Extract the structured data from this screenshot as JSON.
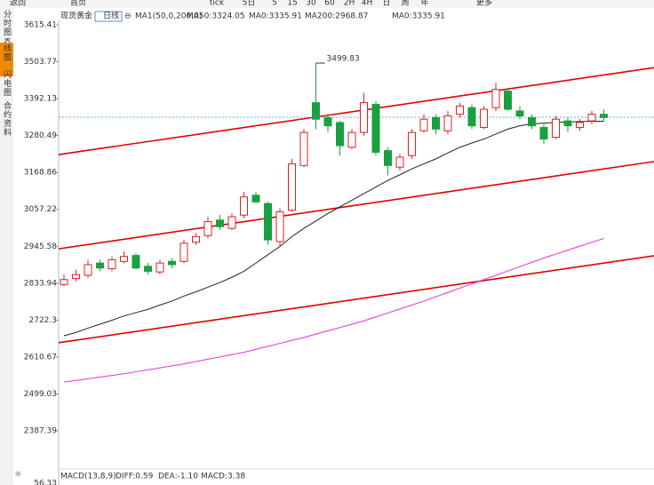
{
  "toolbar": [
    "返回",
    "首页",
    "tick",
    "5日",
    "5",
    "15",
    "30",
    "60",
    "2H",
    "4H",
    "日",
    "周",
    "年",
    "更多"
  ],
  "sidebar": [
    "分时图",
    "K线图",
    "闪电图",
    "合约资料"
  ],
  "chart_data": {
    "type": "candlestick",
    "title": "现货黄金",
    "period": "日线",
    "indicator": "MA1(50,0,200,0)",
    "legend": [
      {
        "label": "MA50:3324.05",
        "color": "#222222"
      },
      {
        "label": "MA0:3335.91",
        "color": "#1a5fd0"
      },
      {
        "label": "MA200:2968.87",
        "color": "#e030e0"
      },
      {
        "label": "MA0:3335.91",
        "color": "#f08a00"
      }
    ],
    "up_color": "#e02020",
    "down_color": "#1aa040",
    "open": [
      2830,
      2848,
      2858,
      2895,
      2878,
      2900,
      2918,
      2885,
      2868,
      2900,
      2900,
      2958,
      2978,
      3025,
      3000,
      3040,
      3100,
      3075,
      2960,
      3055,
      3190,
      3380,
      3335,
      3320,
      3245,
      3290,
      3375,
      3235,
      3185,
      3220,
      3295,
      3335,
      3295,
      3345,
      3365,
      3305,
      3365,
      3415,
      3355,
      3335,
      3305,
      3275,
      3325,
      3305,
      3325,
      3345
    ],
    "high": [
      2860,
      2875,
      2905,
      2905,
      2915,
      2930,
      2925,
      2895,
      2905,
      2910,
      2965,
      2985,
      3035,
      3040,
      3045,
      3110,
      3110,
      3080,
      3060,
      3210,
      3300,
      3499.83,
      3345,
      3325,
      3300,
      3410,
      3385,
      3245,
      3225,
      3300,
      3345,
      3345,
      3355,
      3380,
      3375,
      3370,
      3440,
      3425,
      3370,
      3345,
      3315,
      3340,
      3335,
      3330,
      3355,
      3360
    ],
    "low": [
      2825,
      2840,
      2850,
      2870,
      2870,
      2895,
      2875,
      2860,
      2860,
      2880,
      2895,
      2950,
      2970,
      2995,
      2995,
      3030,
      3075,
      2950,
      2945,
      3050,
      3185,
      3300,
      3290,
      3220,
      3240,
      3280,
      3220,
      3160,
      3175,
      3210,
      3290,
      3285,
      3285,
      3335,
      3300,
      3300,
      3355,
      3355,
      3330,
      3300,
      3255,
      3270,
      3290,
      3295,
      3315,
      3325
    ],
    "close": [
      2845,
      2860,
      2890,
      2880,
      2905,
      2915,
      2880,
      2870,
      2895,
      2890,
      2955,
      2975,
      3020,
      3005,
      3035,
      3095,
      3080,
      2965,
      3050,
      3195,
      3290,
      3330,
      3310,
      3250,
      3290,
      3380,
      3230,
      3190,
      3215,
      3290,
      3330,
      3300,
      3340,
      3370,
      3310,
      3360,
      3420,
      3360,
      3340,
      3310,
      3270,
      3330,
      3310,
      3320,
      3345,
      3335
    ],
    "series": [
      {
        "color": "#222222",
        "values": [
          2675,
          2685,
          2698,
          2710,
          2722,
          2735,
          2745,
          2755,
          2768,
          2780,
          2795,
          2808,
          2822,
          2836,
          2852,
          2870,
          2895,
          2920,
          2945,
          2975,
          3000,
          3022,
          3045,
          3065,
          3085,
          3105,
          3125,
          3145,
          3162,
          3180,
          3195,
          3210,
          3228,
          3245,
          3258,
          3270,
          3285,
          3300,
          3310,
          3316,
          3318,
          3320,
          3322,
          3323,
          3324,
          3324
        ]
      },
      {
        "color": "#e030e0",
        "values": [
          2535,
          2540,
          2545,
          2550,
          2555,
          2560,
          2566,
          2572,
          2578,
          2584,
          2590,
          2597,
          2604,
          2611,
          2618,
          2625,
          2634,
          2643,
          2652,
          2661,
          2670,
          2680,
          2690,
          2700,
          2710,
          2720,
          2732,
          2744,
          2756,
          2768,
          2780,
          2793,
          2806,
          2819,
          2832,
          2845,
          2858,
          2871,
          2884,
          2897,
          2910,
          2922,
          2934,
          2946,
          2958,
          2969
        ]
      }
    ],
    "trendlines": [
      {
        "color": "#e00000",
        "values": [
          3223,
          3486
        ]
      },
      {
        "color": "#e00000",
        "values": [
          2938,
          3202
        ]
      },
      {
        "color": "#e00000",
        "values": [
          2654,
          2917
        ]
      }
    ],
    "last_price": 3335.91,
    "ylim": [
      2266.6,
      3631.5
    ],
    "yticks": [
      3615.41,
      3503.77,
      3392.13,
      3280.49,
      3168.86,
      3057.22,
      2945.58,
      2833.94,
      2722.3,
      2610.67,
      2499.03,
      2387.39
    ],
    "macd": {
      "label": "MACD(13,8,9)",
      "items": [
        {
          "label": "DIFF:0.59",
          "color": "#222222"
        },
        {
          "label": "DEA:-1.10",
          "color": "#1a5fd0"
        },
        {
          "label": "MACD:3.38",
          "color": "#e030e0"
        }
      ],
      "axis_label": "56.33"
    }
  }
}
